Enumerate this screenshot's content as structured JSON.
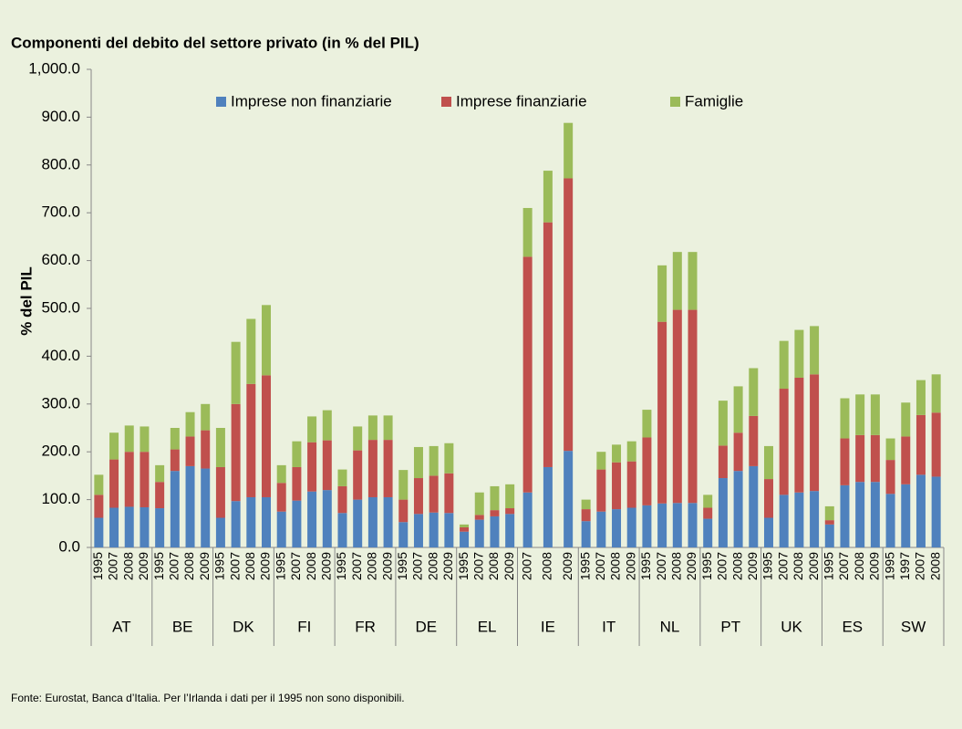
{
  "chart_data": {
    "type": "stacked_bar",
    "title": "Componenti del debito del settore privato (in % del PIL)",
    "y_label": "% del PIL",
    "note": "Fonte: Eurostat, Banca d’Italia. Per l’Irlanda i dati per il 1995 non sono disponibili.",
    "groups": [
      {
        "label": "AT",
        "categories": [
          "1995",
          "2007",
          "2008",
          "2009"
        ]
      },
      {
        "label": "BE",
        "categories": [
          "1995",
          "2007",
          "2008",
          "2009"
        ]
      },
      {
        "label": "DK",
        "categories": [
          "1995",
          "2007",
          "2008",
          "2009"
        ]
      },
      {
        "label": "FI",
        "categories": [
          "1995",
          "2007",
          "2008",
          "2009"
        ]
      },
      {
        "label": "FR",
        "categories": [
          "1995",
          "2007",
          "2008",
          "2009"
        ]
      },
      {
        "label": "DE",
        "categories": [
          "1995",
          "2007",
          "2008",
          "2009"
        ]
      },
      {
        "label": "EL",
        "categories": [
          "1995",
          "2007",
          "2008",
          "2009"
        ]
      },
      {
        "label": "IE",
        "categories": [
          "2007",
          "2008",
          "2009"
        ]
      },
      {
        "label": "IT",
        "categories": [
          "1995",
          "2007",
          "2008",
          "2009"
        ]
      },
      {
        "label": "NL",
        "categories": [
          "1995",
          "2007",
          "2008",
          "2009"
        ]
      },
      {
        "label": "PT",
        "categories": [
          "1995",
          "2007",
          "2008",
          "2009"
        ]
      },
      {
        "label": "UK",
        "categories": [
          "1995",
          "2007",
          "2008",
          "2009"
        ]
      },
      {
        "label": "ES",
        "categories": [
          "1995",
          "2007",
          "2008",
          "2009"
        ]
      },
      {
        "label": "SW",
        "categories": [
          "1995",
          "1997",
          "2007",
          "2008"
        ]
      }
    ],
    "series": [
      {
        "name": "Imprese non finanziarie",
        "color": "#4f81bd",
        "values": [
          62,
          83,
          85,
          84,
          82,
          160,
          170,
          165,
          62,
          97,
          105,
          105,
          75,
          98,
          117,
          120,
          72,
          100,
          105,
          105,
          53,
          70,
          73,
          72,
          33,
          58,
          65,
          70,
          115,
          168,
          202,
          55,
          75,
          80,
          83,
          88,
          92,
          93,
          93,
          60,
          145,
          160,
          170,
          62,
          110,
          115,
          118,
          48,
          130,
          137,
          137,
          112,
          132,
          152,
          148
        ]
      },
      {
        "name": "Imprese finanziarie",
        "color": "#c0504d",
        "values": [
          48,
          101,
          115,
          116,
          55,
          45,
          62,
          80,
          106,
          203,
          237,
          255,
          60,
          70,
          103,
          104,
          56,
          103,
          120,
          120,
          47,
          75,
          77,
          83,
          9,
          10,
          13,
          12,
          493,
          512,
          570,
          25,
          88,
          98,
          97,
          142,
          380,
          404,
          404,
          23,
          68,
          80,
          105,
          81,
          222,
          240,
          244,
          9,
          98,
          98,
          98,
          71,
          100,
          125,
          134
        ]
      },
      {
        "name": "Famiglie",
        "color": "#9bbb59",
        "values": [
          42,
          56,
          55,
          53,
          35,
          45,
          51,
          55,
          82,
          130,
          136,
          147,
          37,
          54,
          54,
          63,
          35,
          50,
          51,
          51,
          62,
          65,
          62,
          63,
          6,
          47,
          50,
          50,
          102,
          108,
          116,
          20,
          37,
          37,
          42,
          58,
          118,
          121,
          121,
          27,
          94,
          97,
          100,
          69,
          100,
          100,
          101,
          29,
          84,
          85,
          85,
          45,
          71,
          73,
          80
        ]
      }
    ],
    "ylim": [
      0,
      1000
    ],
    "yticks": [
      {
        "value": 0,
        "label": "0.0"
      },
      {
        "value": 100,
        "label": "100.0"
      },
      {
        "value": 200,
        "label": "200.0"
      },
      {
        "value": 300,
        "label": "300.0"
      },
      {
        "value": 400,
        "label": "400.0"
      },
      {
        "value": 500,
        "label": "500.0"
      },
      {
        "value": 600,
        "label": "600.0"
      },
      {
        "value": 700,
        "label": "700.0"
      },
      {
        "value": 800,
        "label": "800.0"
      },
      {
        "value": 900,
        "label": "900.0"
      },
      {
        "value": 1000,
        "label": "1,000.0"
      }
    ],
    "grid": false
  }
}
